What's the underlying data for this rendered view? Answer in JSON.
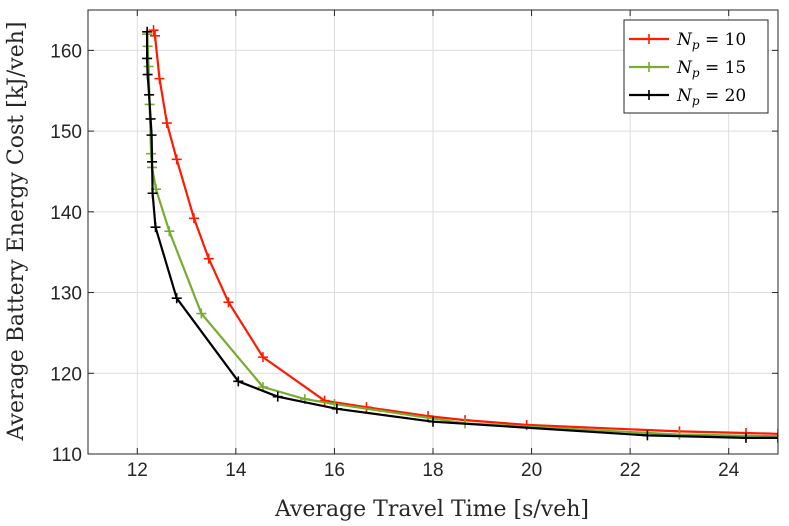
{
  "chart_data": {
    "type": "line",
    "title": "",
    "xlabel": "Average Travel Time [s/veh]",
    "ylabel": "Average Battery Energy Cost [kJ/veh]",
    "xlim": [
      11,
      25
    ],
    "ylim": [
      110,
      165
    ],
    "xticks": [
      12,
      14,
      16,
      18,
      20,
      22,
      24
    ],
    "yticks": [
      110,
      120,
      130,
      140,
      150,
      160
    ],
    "grid": true,
    "legend_position": "top-right",
    "series": [
      {
        "name": "N_p = 10",
        "legend_main": "N",
        "legend_sub": "p",
        "legend_value": " = 10",
        "color": "#ff1a00",
        "points": [
          [
            12.33,
            162.5
          ],
          [
            12.36,
            161.8
          ],
          [
            12.45,
            156.5
          ],
          [
            12.6,
            151.0
          ],
          [
            12.8,
            146.5
          ],
          [
            13.15,
            139.2
          ],
          [
            13.45,
            134.2
          ],
          [
            13.85,
            128.8
          ],
          [
            14.55,
            122.0
          ],
          [
            15.8,
            116.6
          ],
          [
            16.65,
            115.8
          ],
          [
            17.9,
            114.7
          ],
          [
            18.65,
            114.2
          ],
          [
            19.9,
            113.6
          ],
          [
            23.0,
            112.8
          ],
          [
            24.35,
            112.6
          ],
          [
            25.0,
            112.5
          ]
        ]
      },
      {
        "name": "N_p = 15",
        "legend_main": "N",
        "legend_sub": "p",
        "legend_value": " = 15",
        "color": "#77ac30",
        "points": [
          [
            12.2,
            162.0
          ],
          [
            12.21,
            160.5
          ],
          [
            12.23,
            158.0
          ],
          [
            12.25,
            153.3
          ],
          [
            12.28,
            147.2
          ],
          [
            12.3,
            145.5
          ],
          [
            12.38,
            142.8
          ],
          [
            12.65,
            137.6
          ],
          [
            13.3,
            127.4
          ],
          [
            14.55,
            118.3
          ],
          [
            15.4,
            116.8
          ],
          [
            16.0,
            116.2
          ],
          [
            18.65,
            113.8
          ],
          [
            23.0,
            112.4
          ],
          [
            25.0,
            112.2
          ]
        ]
      },
      {
        "name": "N_p = 20",
        "legend_main": "N",
        "legend_sub": "p",
        "legend_value": " = 20",
        "color": "#000000",
        "points": [
          [
            12.2,
            162.3
          ],
          [
            12.2,
            159.0
          ],
          [
            12.21,
            157.0
          ],
          [
            12.24,
            154.5
          ],
          [
            12.27,
            151.5
          ],
          [
            12.29,
            149.5
          ],
          [
            12.3,
            146.2
          ],
          [
            12.31,
            142.3
          ],
          [
            12.37,
            138.1
          ],
          [
            12.8,
            129.3
          ],
          [
            14.05,
            119.0
          ],
          [
            14.85,
            117.1
          ],
          [
            16.05,
            115.6
          ],
          [
            18.0,
            114.0
          ],
          [
            22.35,
            112.3
          ],
          [
            24.35,
            112.0
          ],
          [
            25.0,
            112.0
          ]
        ]
      }
    ]
  }
}
